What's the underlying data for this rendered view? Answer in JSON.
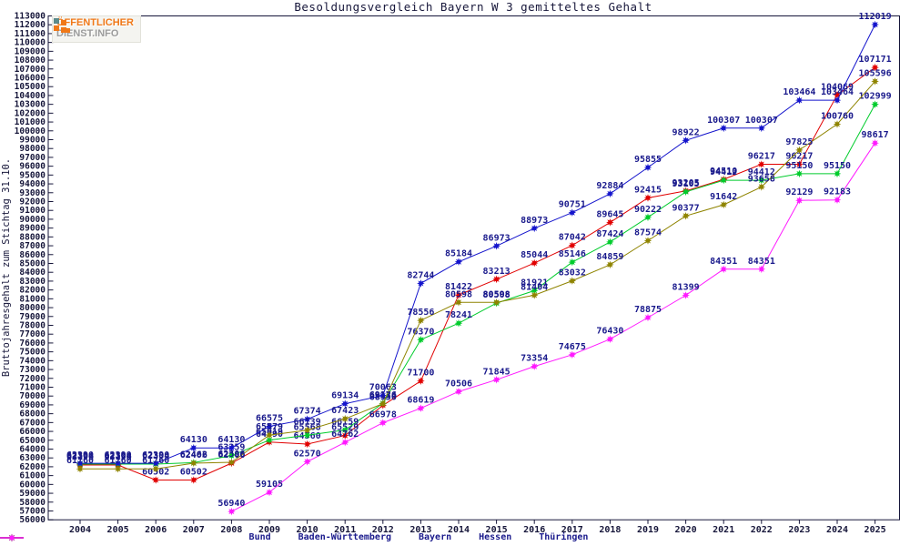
{
  "page": {
    "background": "#ffffff"
  },
  "logo": {
    "line1": "ÖFFENTLICHER",
    "line2": "DIENST.INFO",
    "orange": "#f07818",
    "gray": "#9b9b9b",
    "teal": "#5b8a8a"
  },
  "chart_data": {
    "type": "line",
    "title": "Besoldungsvergleich Bayern W 3 gemitteltes Gehalt",
    "ylabel": "Bruttojahresgehalt zum Stichtag 31.10.",
    "xlabel": "",
    "grid": false,
    "legend_position": "bottom",
    "label_color": "#1a1a8c",
    "axis_color": "#16163a",
    "x": [
      2004,
      2005,
      2006,
      2007,
      2008,
      2009,
      2010,
      2011,
      2012,
      2013,
      2014,
      2015,
      2016,
      2017,
      2018,
      2019,
      2020,
      2021,
      2022,
      2023,
      2024,
      2025
    ],
    "y_axis": {
      "min": 56000,
      "max": 113000,
      "step": 1000
    },
    "series": [
      {
        "name": "Bund",
        "color": "#e10000",
        "values": [
          62196,
          62196,
          60502,
          60502,
          62406,
          64790,
          64560,
          65529,
          68950,
          71700,
          81422,
          83213,
          85044,
          87042,
          89645,
          92415,
          93205,
          94510,
          96217,
          96217,
          104069,
          107171
        ]
      },
      {
        "name": "Baden-Württemberg",
        "color": "#00cc2c",
        "values": [
          62304,
          62304,
          62304,
          62462,
          63259,
          65019,
          65568,
          66159,
          69176,
          76370,
          78241,
          80508,
          81921,
          85146,
          87424,
          90222,
          93105,
          94412,
          94412,
          95150,
          95150,
          102999
        ]
      },
      {
        "name": "Bayern",
        "color": "#1414cc",
        "values": [
          62390,
          62390,
          62390,
          64130,
          64130,
          66575,
          67374,
          69134,
          70063,
          82744,
          85184,
          86973,
          88973,
          90751,
          92884,
          95855,
          98922,
          100307,
          100307,
          103464,
          103464,
          112019
        ]
      },
      {
        "name": "Hessen",
        "color": "#8f8400",
        "values": [
          61760,
          61760,
          61760,
          62406,
          62506,
          65579,
          66139,
          67423,
          69134,
          78556,
          80598,
          80598,
          81404,
          83032,
          84859,
          87574,
          90377,
          91642,
          93658,
          97825,
          100760,
          105596
        ]
      },
      {
        "name": "Thüringen",
        "color": "#ff1aff",
        "values": [
          null,
          null,
          null,
          null,
          56940,
          59105,
          62570,
          64762,
          66978,
          68619,
          70506,
          71845,
          73354,
          74675,
          76430,
          78875,
          81399,
          84351,
          84351,
          92129,
          92183,
          98617
        ]
      }
    ]
  }
}
